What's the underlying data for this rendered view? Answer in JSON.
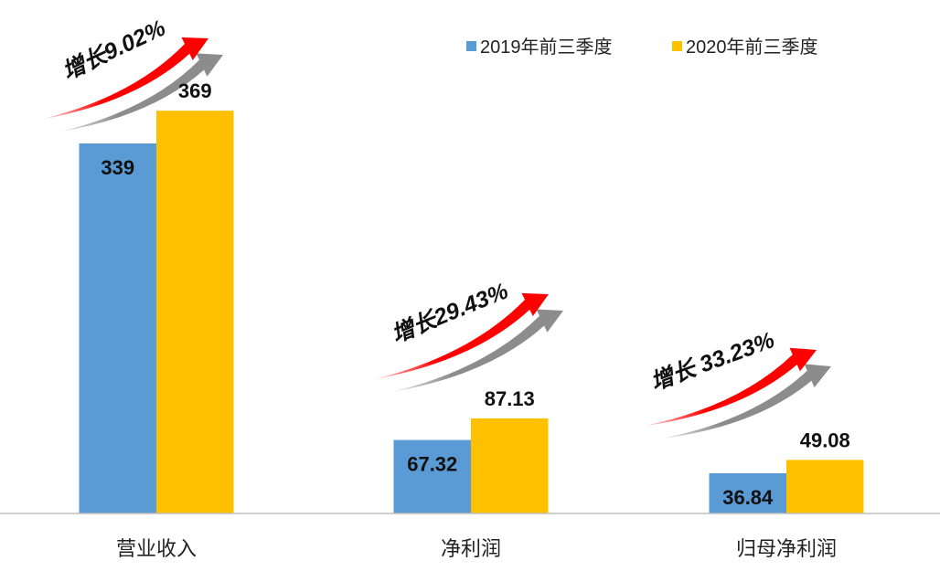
{
  "chart_data": {
    "type": "bar",
    "categories": [
      "营业收入",
      "净利润",
      "归母净利润"
    ],
    "series": [
      {
        "name": "2019年前三季度",
        "values": [
          339,
          67.32,
          36.84
        ],
        "color": "#5B9BD5",
        "labels": [
          "339",
          "67.32",
          "36.84"
        ]
      },
      {
        "name": "2020年前三季度",
        "values": [
          369,
          87.13,
          49.08
        ],
        "color": "#FFC000",
        "labels": [
          "369",
          "87.13",
          "49.08"
        ]
      }
    ],
    "annotations": [
      "增长9.02%",
      "增长29.43%",
      "增长 33.23%"
    ],
    "annotation_arrow_colors": {
      "main": "#FF0000",
      "shadow": "#8C8C8C"
    },
    "ylim": [
      0,
      470
    ],
    "legend": "top-right",
    "grid": false,
    "axis_color": "#BFBFBF"
  }
}
